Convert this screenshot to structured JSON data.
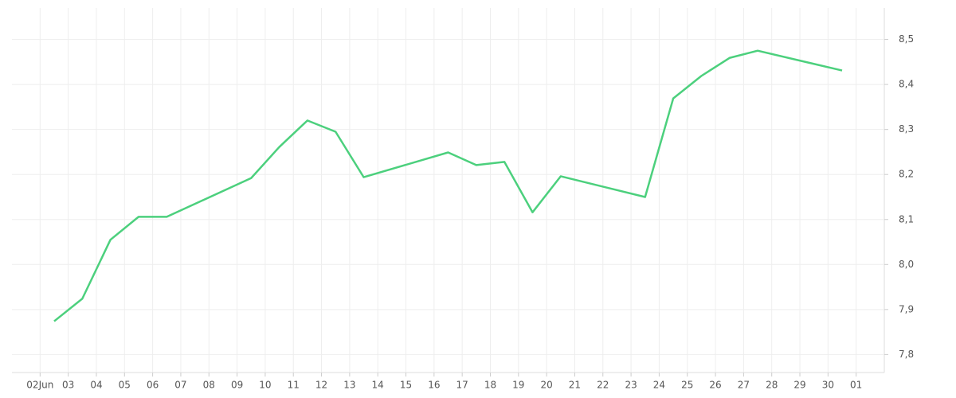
{
  "chart_data": {
    "type": "line",
    "x": [
      2.5,
      3.5,
      4.5,
      5.5,
      6.5,
      9.5,
      10.5,
      11.5,
      12.5,
      13.5,
      16.5,
      17.5,
      18.5,
      19.5,
      20.5,
      23.5,
      24.5,
      25.5,
      26.5,
      27.5,
      30.5
    ],
    "series": [
      {
        "color": "#4cd07d",
        "values": [
          7.874,
          7.924,
          8.055,
          8.106,
          8.106,
          8.192,
          8.261,
          8.32,
          8.295,
          8.194,
          8.249,
          8.221,
          8.228,
          8.116,
          8.196,
          8.15,
          8.369,
          8.419,
          8.459,
          8.475,
          8.431
        ]
      }
    ],
    "xlim": [
      1,
      32
    ],
    "xticks": [
      {
        "value": 2,
        "label": "02Jun"
      },
      {
        "value": 3,
        "label": "03"
      },
      {
        "value": 4,
        "label": "04"
      },
      {
        "value": 5,
        "label": "05"
      },
      {
        "value": 6,
        "label": "06"
      },
      {
        "value": 7,
        "label": "07"
      },
      {
        "value": 8,
        "label": "08"
      },
      {
        "value": 9,
        "label": "09"
      },
      10,
      11,
      12,
      13,
      14,
      15,
      16,
      17,
      18,
      19,
      20,
      21,
      22,
      23,
      24,
      25,
      26,
      27,
      28,
      29,
      30,
      {
        "value": 31,
        "label": "01"
      }
    ],
    "ylim": [
      7.76,
      8.57
    ],
    "yticks": [
      {
        "value": 7.8,
        "label": "7,8"
      },
      {
        "value": 7.9,
        "label": "7,9"
      },
      {
        "value": 8.0,
        "label": "8,0"
      },
      {
        "value": 8.1,
        "label": "8,1"
      },
      {
        "value": 8.2,
        "label": "8,2"
      },
      {
        "value": 8.3,
        "label": "8,3"
      },
      {
        "value": 8.4,
        "label": "8,4"
      },
      {
        "value": 8.5,
        "label": "8,5"
      }
    ],
    "grid": true
  }
}
